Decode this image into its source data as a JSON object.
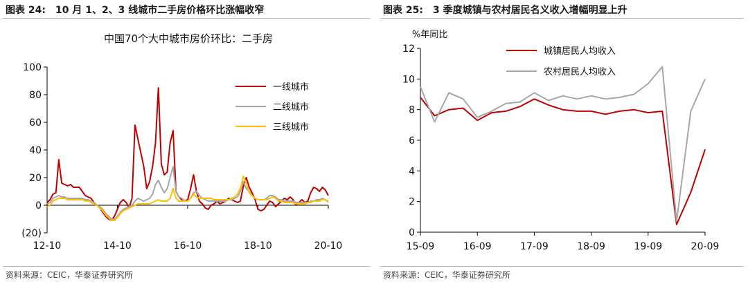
{
  "left": {
    "fig_label": "图表 24:",
    "fig_title": "10 月 1、2、3 线城市二手房价格环比涨幅收窄",
    "source": "资料来源：CEIC，华泰证券研究所",
    "chart_data": {
      "type": "line",
      "title": "中国70个大中城市房价环比：二手房",
      "xlabel": "",
      "ylabel": "",
      "ylim": [
        -20,
        100
      ],
      "yticks": [
        -20,
        0,
        20,
        40,
        60,
        80,
        100
      ],
      "ytick_labels": [
        "(20)",
        "0",
        "20",
        "40",
        "60",
        "80",
        "100"
      ],
      "xlim": [
        0,
        96
      ],
      "xticks": [
        0,
        24,
        48,
        72,
        96
      ],
      "xtick_labels": [
        "12-10",
        "14-10",
        "16-10",
        "18-10",
        "20-10"
      ],
      "legend_position": "upper-right",
      "series": [
        {
          "name": "一线城市",
          "color": "#c00000",
          "values": [
            2,
            4,
            8,
            9,
            33,
            16,
            15,
            14,
            15,
            13,
            13,
            13,
            10,
            7,
            6,
            5,
            2,
            0,
            -2,
            -5,
            -8,
            -10,
            -11,
            -8,
            -3,
            2,
            4,
            2,
            -2,
            5,
            58,
            48,
            38,
            28,
            12,
            17,
            28,
            45,
            85,
            30,
            22,
            24,
            45,
            54,
            10,
            6,
            4,
            3,
            4,
            12,
            22,
            10,
            3,
            1,
            -2,
            -3,
            0,
            1,
            3,
            1,
            2,
            3,
            5,
            4,
            3,
            2,
            3,
            14,
            20,
            13,
            9,
            4,
            -3,
            -4,
            -3,
            0,
            3,
            2,
            -1,
            1,
            3,
            5,
            4,
            6,
            4,
            0,
            2,
            4,
            2,
            3,
            9,
            13,
            12,
            10,
            13,
            11,
            7
          ]
        },
        {
          "name": "二线城市",
          "color": "#a6a6a6",
          "values": [
            1,
            2,
            5,
            6,
            7,
            6,
            6,
            5,
            5,
            5,
            5,
            5,
            5,
            4,
            4,
            3,
            2,
            0,
            -1,
            -3,
            -6,
            -8,
            -10,
            -10,
            -8,
            -5,
            -3,
            -2,
            -1,
            0,
            3,
            5,
            4,
            3,
            4,
            5,
            8,
            15,
            18,
            13,
            9,
            12,
            20,
            28,
            10,
            6,
            5,
            3,
            3,
            5,
            9,
            10,
            7,
            5,
            4,
            3,
            3,
            3,
            3,
            3,
            3,
            3,
            4,
            4,
            5,
            6,
            10,
            17,
            12,
            10,
            7,
            5,
            4,
            4,
            4,
            5,
            7,
            7,
            6,
            4,
            4,
            3,
            3,
            3,
            3,
            2,
            2,
            2,
            2,
            2,
            3,
            3,
            4,
            4,
            5,
            4,
            3
          ]
        },
        {
          "name": "三线城市",
          "color": "#ffc000",
          "values": [
            -1,
            0,
            3,
            4,
            5,
            5,
            5,
            4,
            4,
            4,
            4,
            4,
            4,
            3,
            3,
            2,
            1,
            0,
            -2,
            -4,
            -7,
            -9,
            -11,
            -11,
            -9,
            -6,
            -4,
            -3,
            -2,
            -1,
            0,
            1,
            1,
            1,
            1,
            1,
            2,
            3,
            4,
            3,
            3,
            3,
            5,
            12,
            5,
            3,
            3,
            3,
            3,
            5,
            8,
            6,
            5,
            5,
            5,
            5,
            5,
            4,
            4,
            4,
            4,
            4,
            4,
            5,
            6,
            8,
            12,
            21,
            16,
            9,
            7,
            5,
            4,
            4,
            4,
            4,
            5,
            6,
            5,
            3,
            3,
            2,
            2,
            2,
            2,
            1,
            1,
            1,
            1,
            2,
            2,
            3,
            3,
            3,
            4,
            4,
            2
          ]
        }
      ]
    }
  },
  "right": {
    "fig_label": "图表 25:",
    "fig_title": "3 季度城镇与农村居民名义收入增幅明显上升",
    "source": "资料来源：CEIC，华泰证券研究所",
    "chart_data": {
      "type": "line",
      "title": "",
      "xlabel": "",
      "ylabel": "%年同比",
      "ylim": [
        0,
        12
      ],
      "yticks": [
        0,
        2,
        4,
        6,
        8,
        10,
        12
      ],
      "ytick_labels": [
        "0",
        "2",
        "4",
        "6",
        "8",
        "10",
        "12"
      ],
      "xlim": [
        0,
        20
      ],
      "xticks": [
        0,
        4,
        8,
        12,
        16,
        20
      ],
      "xtick_labels": [
        "15-09",
        "16-09",
        "17-09",
        "18-09",
        "19-09",
        "20-09"
      ],
      "legend_position": "upper-center",
      "series": [
        {
          "name": "城镇居民人均收入",
          "color": "#c00000",
          "values": [
            8.8,
            7.6,
            8.0,
            8.1,
            7.3,
            7.8,
            7.9,
            8.2,
            8.7,
            8.3,
            8.0,
            7.9,
            7.9,
            7.7,
            7.9,
            8.0,
            7.8,
            7.9,
            0.5,
            2.6,
            5.4
          ]
        },
        {
          "name": "农村居民人均收入",
          "color": "#a6a6a6",
          "values": [
            9.5,
            7.2,
            9.1,
            8.7,
            7.5,
            7.9,
            8.4,
            8.5,
            9.1,
            8.6,
            8.9,
            8.7,
            8.9,
            8.7,
            8.8,
            9.0,
            9.7,
            10.8,
            0.7,
            7.9,
            10.0
          ]
        }
      ]
    }
  }
}
